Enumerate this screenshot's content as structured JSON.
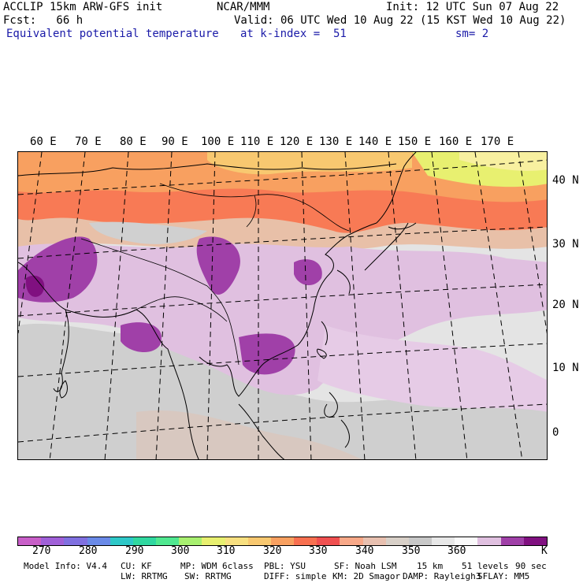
{
  "header": {
    "line1_left": "ACCLIP 15km ARW-GFS init",
    "line1_center": "NCAR/MMM",
    "line1_right": "Init: 12 UTC Sun 07 Aug 22",
    "line2_left": "Fcst:   66 h",
    "line2_right": "Valid: 06 UTC Wed 10 Aug 22 (15 KST Wed 10 Aug 22)",
    "line3_field": "Equivalent potential temperature",
    "line3_level": "at k-index =  51",
    "line3_smooth": "sm= 2"
  },
  "map": {
    "lon_labels": [
      "60 E",
      "70 E",
      "80 E",
      "90 E",
      "100 E",
      "110 E",
      "120 E",
      "130 E",
      "140 E",
      "150 E",
      "160 E",
      "170 E"
    ],
    "lat_labels": [
      "40 N",
      "30 N",
      "20 N",
      "10 N",
      "0"
    ]
  },
  "colorbar": {
    "colors": [
      "#c85fc8",
      "#a060d8",
      "#8070e0",
      "#6a8ae8",
      "#2ec8c8",
      "#30d8a0",
      "#50e890",
      "#a8f070",
      "#e8f070",
      "#f8e080",
      "#f8c870",
      "#f8a060",
      "#f87050",
      "#f05050",
      "#f8a888",
      "#e8c0b0",
      "#d8d0c8",
      "#c8c8c8",
      "#e8e8e8",
      "#fafafa",
      "#e0c0e0",
      "#a040a8",
      "#801080"
    ],
    "labels": [
      "270",
      "280",
      "290",
      "300",
      "310",
      "320",
      "330",
      "340",
      "350",
      "360",
      "K"
    ]
  },
  "footer": {
    "line1": [
      "Model Info: V4.4",
      "CU: KF",
      "MP: WDM 6class",
      "PBL: YSU",
      "SF: Noah LSM",
      "15 km",
      "51 levels",
      "90 sec"
    ],
    "line2": [
      "LW: RRTMG",
      "SW: RRTMG",
      "DIFF: simple",
      "KM: 2D Smagor",
      "DAMP: Rayleigh3",
      "SFLAY: MM5"
    ]
  }
}
